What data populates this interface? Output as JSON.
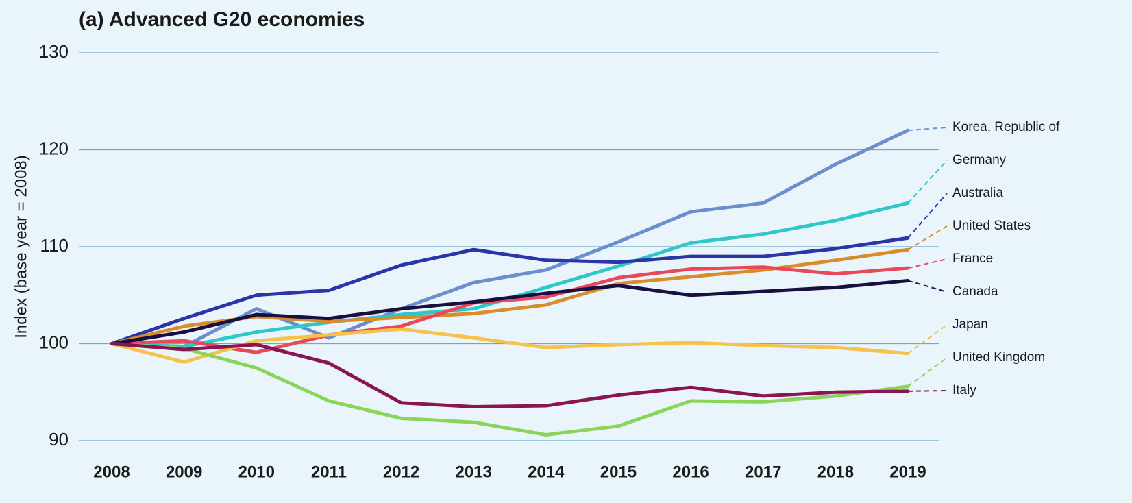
{
  "chart_data": {
    "type": "line",
    "title": "(a) Advanced G20 economies",
    "ylabel": "Index (base year = 2008)",
    "categories": [
      "2008",
      "2009",
      "2010",
      "2011",
      "2012",
      "2013",
      "2014",
      "2015",
      "2016",
      "2017",
      "2018",
      "2019"
    ],
    "ylim": [
      90,
      130
    ],
    "yticks": [
      90,
      100,
      110,
      120,
      130
    ],
    "grid": true,
    "series": [
      {
        "name": "Korea, Republic of",
        "color": "#6a8fcc",
        "values": [
          100,
          99.7,
          103.6,
          100.6,
          103.6,
          106.3,
          107.6,
          110.5,
          113.6,
          114.5,
          118.5,
          122.0
        ]
      },
      {
        "name": "Germany",
        "color": "#2ec8c8",
        "values": [
          100,
          99.7,
          101.2,
          102.2,
          103.0,
          103.6,
          105.8,
          108.0,
          110.4,
          111.3,
          112.7,
          114.5
        ]
      },
      {
        "name": "Australia",
        "color": "#2a35a8",
        "values": [
          100,
          102.6,
          105.0,
          105.5,
          108.1,
          109.7,
          108.6,
          108.4,
          109.0,
          109.0,
          109.8,
          110.9
        ]
      },
      {
        "name": "United States",
        "color": "#d98c2a",
        "values": [
          100,
          101.8,
          102.8,
          102.3,
          102.7,
          103.1,
          104.0,
          106.2,
          106.9,
          107.6,
          108.6,
          109.7
        ]
      },
      {
        "name": "France",
        "color": "#e8485a",
        "values": [
          100,
          100.3,
          99.1,
          100.9,
          101.8,
          104.2,
          104.8,
          106.8,
          107.7,
          107.9,
          107.2,
          107.8
        ]
      },
      {
        "name": "Canada",
        "color": "#1a1040",
        "values": [
          100,
          101.2,
          103.0,
          102.6,
          103.6,
          104.3,
          105.2,
          106.0,
          105.0,
          105.4,
          105.8,
          106.5
        ]
      },
      {
        "name": "Japan",
        "color": "#f5c24a",
        "values": [
          100,
          98.1,
          100.3,
          100.9,
          101.5,
          100.6,
          99.6,
          99.9,
          100.1,
          99.8,
          99.6,
          99.0
        ]
      },
      {
        "name": "United Kingdom",
        "color": "#8ad45a",
        "values": [
          100,
          99.5,
          97.5,
          94.1,
          92.3,
          91.9,
          90.6,
          91.5,
          94.1,
          94.0,
          94.6,
          95.6
        ]
      },
      {
        "name": "Italy",
        "color": "#8a1550",
        "values": [
          100,
          99.4,
          99.9,
          98.0,
          93.9,
          93.5,
          93.6,
          94.7,
          95.5,
          94.6,
          95.0,
          95.1
        ]
      }
    ]
  }
}
